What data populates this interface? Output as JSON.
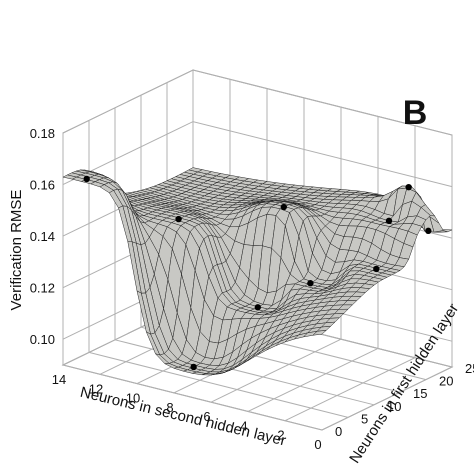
{
  "chart_data": {
    "type": "surface3d",
    "panel_label": "B",
    "zlabel": "Verification RMSE",
    "xlabel": "Neurons in second hidden layer",
    "ylabel": "Neurons in first hidden layer",
    "zlim": [
      0.09,
      0.18
    ],
    "xlim": [
      0,
      14
    ],
    "ylim": [
      0,
      25
    ],
    "z_ticks": [
      "0.10",
      "0.12",
      "0.14",
      "0.16",
      "0.18"
    ],
    "x_ticks": [
      "14",
      "12",
      "10",
      "8",
      "6",
      "4",
      "2",
      "0"
    ],
    "y_ticks": [
      "0",
      "5",
      "10",
      "15",
      "20",
      "25"
    ],
    "grid": true,
    "surface_color": "#c8c8c4",
    "mesh_color": "#222222",
    "points": [
      {
        "x": 13,
        "y": 1,
        "z": 0.163
      },
      {
        "x": 7.5,
        "y": 2,
        "z": 0.099
      },
      {
        "x": 6,
        "y": 9,
        "z": 0.118
      },
      {
        "x": 10,
        "y": 8,
        "z": 0.146
      },
      {
        "x": 4,
        "y": 12,
        "z": 0.128
      },
      {
        "x": 6,
        "y": 14,
        "z": 0.152
      },
      {
        "x": 1,
        "y": 14,
        "z": 0.137
      },
      {
        "x": 2,
        "y": 20,
        "z": 0.148
      },
      {
        "x": 1.5,
        "y": 22,
        "z": 0.16
      },
      {
        "x": 1,
        "y": 24,
        "z": 0.142
      }
    ]
  }
}
